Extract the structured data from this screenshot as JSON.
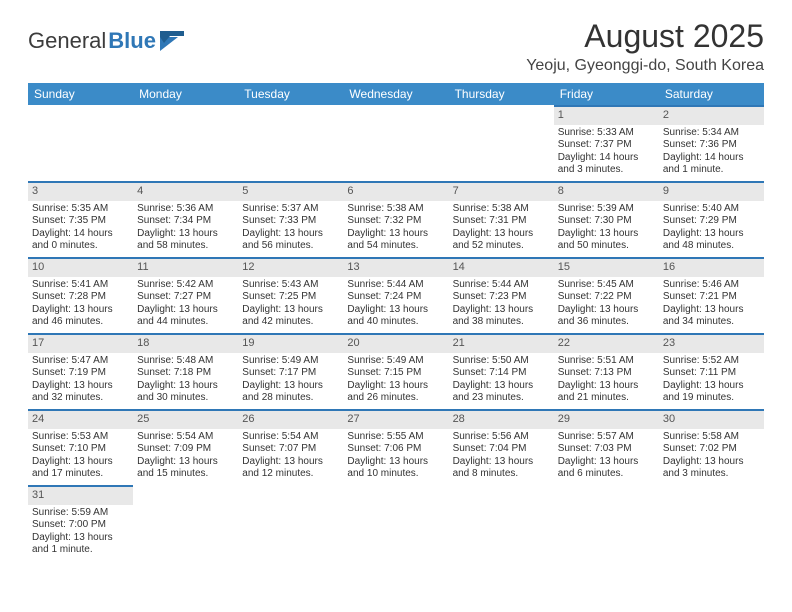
{
  "brand": {
    "word1": "General",
    "word2": "Blue"
  },
  "title": "August 2025",
  "location": "Yeoju, Gyeonggi-do, South Korea",
  "colors": {
    "header_bg": "#3b8bc8",
    "header_text": "#ffffff",
    "accent_border": "#2f77b6",
    "dayband_bg": "#e8e8e8",
    "text": "#333333",
    "background": "#ffffff"
  },
  "calendar": {
    "columns": [
      "Sunday",
      "Monday",
      "Tuesday",
      "Wednesday",
      "Thursday",
      "Friday",
      "Saturday"
    ],
    "weeks": [
      [
        null,
        null,
        null,
        null,
        null,
        {
          "d": "1",
          "sr": "Sunrise: 5:33 AM",
          "ss": "Sunset: 7:37 PM",
          "dl": "Daylight: 14 hours and 3 minutes."
        },
        {
          "d": "2",
          "sr": "Sunrise: 5:34 AM",
          "ss": "Sunset: 7:36 PM",
          "dl": "Daylight: 14 hours and 1 minute."
        }
      ],
      [
        {
          "d": "3",
          "sr": "Sunrise: 5:35 AM",
          "ss": "Sunset: 7:35 PM",
          "dl": "Daylight: 14 hours and 0 minutes."
        },
        {
          "d": "4",
          "sr": "Sunrise: 5:36 AM",
          "ss": "Sunset: 7:34 PM",
          "dl": "Daylight: 13 hours and 58 minutes."
        },
        {
          "d": "5",
          "sr": "Sunrise: 5:37 AM",
          "ss": "Sunset: 7:33 PM",
          "dl": "Daylight: 13 hours and 56 minutes."
        },
        {
          "d": "6",
          "sr": "Sunrise: 5:38 AM",
          "ss": "Sunset: 7:32 PM",
          "dl": "Daylight: 13 hours and 54 minutes."
        },
        {
          "d": "7",
          "sr": "Sunrise: 5:38 AM",
          "ss": "Sunset: 7:31 PM",
          "dl": "Daylight: 13 hours and 52 minutes."
        },
        {
          "d": "8",
          "sr": "Sunrise: 5:39 AM",
          "ss": "Sunset: 7:30 PM",
          "dl": "Daylight: 13 hours and 50 minutes."
        },
        {
          "d": "9",
          "sr": "Sunrise: 5:40 AM",
          "ss": "Sunset: 7:29 PM",
          "dl": "Daylight: 13 hours and 48 minutes."
        }
      ],
      [
        {
          "d": "10",
          "sr": "Sunrise: 5:41 AM",
          "ss": "Sunset: 7:28 PM",
          "dl": "Daylight: 13 hours and 46 minutes."
        },
        {
          "d": "11",
          "sr": "Sunrise: 5:42 AM",
          "ss": "Sunset: 7:27 PM",
          "dl": "Daylight: 13 hours and 44 minutes."
        },
        {
          "d": "12",
          "sr": "Sunrise: 5:43 AM",
          "ss": "Sunset: 7:25 PM",
          "dl": "Daylight: 13 hours and 42 minutes."
        },
        {
          "d": "13",
          "sr": "Sunrise: 5:44 AM",
          "ss": "Sunset: 7:24 PM",
          "dl": "Daylight: 13 hours and 40 minutes."
        },
        {
          "d": "14",
          "sr": "Sunrise: 5:44 AM",
          "ss": "Sunset: 7:23 PM",
          "dl": "Daylight: 13 hours and 38 minutes."
        },
        {
          "d": "15",
          "sr": "Sunrise: 5:45 AM",
          "ss": "Sunset: 7:22 PM",
          "dl": "Daylight: 13 hours and 36 minutes."
        },
        {
          "d": "16",
          "sr": "Sunrise: 5:46 AM",
          "ss": "Sunset: 7:21 PM",
          "dl": "Daylight: 13 hours and 34 minutes."
        }
      ],
      [
        {
          "d": "17",
          "sr": "Sunrise: 5:47 AM",
          "ss": "Sunset: 7:19 PM",
          "dl": "Daylight: 13 hours and 32 minutes."
        },
        {
          "d": "18",
          "sr": "Sunrise: 5:48 AM",
          "ss": "Sunset: 7:18 PM",
          "dl": "Daylight: 13 hours and 30 minutes."
        },
        {
          "d": "19",
          "sr": "Sunrise: 5:49 AM",
          "ss": "Sunset: 7:17 PM",
          "dl": "Daylight: 13 hours and 28 minutes."
        },
        {
          "d": "20",
          "sr": "Sunrise: 5:49 AM",
          "ss": "Sunset: 7:15 PM",
          "dl": "Daylight: 13 hours and 26 minutes."
        },
        {
          "d": "21",
          "sr": "Sunrise: 5:50 AM",
          "ss": "Sunset: 7:14 PM",
          "dl": "Daylight: 13 hours and 23 minutes."
        },
        {
          "d": "22",
          "sr": "Sunrise: 5:51 AM",
          "ss": "Sunset: 7:13 PM",
          "dl": "Daylight: 13 hours and 21 minutes."
        },
        {
          "d": "23",
          "sr": "Sunrise: 5:52 AM",
          "ss": "Sunset: 7:11 PM",
          "dl": "Daylight: 13 hours and 19 minutes."
        }
      ],
      [
        {
          "d": "24",
          "sr": "Sunrise: 5:53 AM",
          "ss": "Sunset: 7:10 PM",
          "dl": "Daylight: 13 hours and 17 minutes."
        },
        {
          "d": "25",
          "sr": "Sunrise: 5:54 AM",
          "ss": "Sunset: 7:09 PM",
          "dl": "Daylight: 13 hours and 15 minutes."
        },
        {
          "d": "26",
          "sr": "Sunrise: 5:54 AM",
          "ss": "Sunset: 7:07 PM",
          "dl": "Daylight: 13 hours and 12 minutes."
        },
        {
          "d": "27",
          "sr": "Sunrise: 5:55 AM",
          "ss": "Sunset: 7:06 PM",
          "dl": "Daylight: 13 hours and 10 minutes."
        },
        {
          "d": "28",
          "sr": "Sunrise: 5:56 AM",
          "ss": "Sunset: 7:04 PM",
          "dl": "Daylight: 13 hours and 8 minutes."
        },
        {
          "d": "29",
          "sr": "Sunrise: 5:57 AM",
          "ss": "Sunset: 7:03 PM",
          "dl": "Daylight: 13 hours and 6 minutes."
        },
        {
          "d": "30",
          "sr": "Sunrise: 5:58 AM",
          "ss": "Sunset: 7:02 PM",
          "dl": "Daylight: 13 hours and 3 minutes."
        }
      ],
      [
        {
          "d": "31",
          "sr": "Sunrise: 5:59 AM",
          "ss": "Sunset: 7:00 PM",
          "dl": "Daylight: 13 hours and 1 minute."
        },
        null,
        null,
        null,
        null,
        null,
        null
      ]
    ]
  }
}
